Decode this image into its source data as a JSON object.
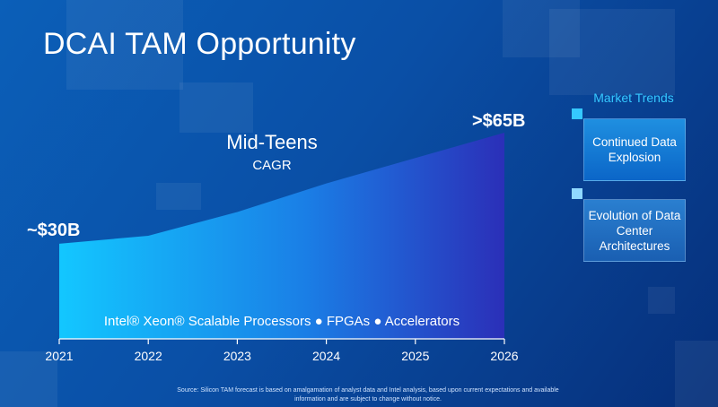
{
  "title": "DCAI TAM Opportunity",
  "cagr": {
    "line1": "Mid-Teens",
    "line2": "CAGR"
  },
  "start_label": "~$30B",
  "end_label": ">$65B",
  "products_line": "Intel® Xeon® Scalable Processors ● FPGAs ● Accelerators",
  "market_trends": {
    "title": "Market Trends",
    "items": [
      "Continued Data Explosion",
      "Evolution of Data Center Architectures"
    ]
  },
  "source": "Source: Silicon TAM forecast is based on amalgamation of analyst data and Intel analysis, based upon current expectations and available information and are subject to change without notice.",
  "colors": {
    "area_left": "#13c7ff",
    "area_right": "#2b2fb8",
    "accent": "#35c8ff"
  },
  "chart_data": {
    "type": "area",
    "title": "DCAI TAM Opportunity",
    "x": [
      2021,
      2022,
      2023,
      2024,
      2025,
      2026
    ],
    "series": [
      {
        "values": [
          30,
          32.5,
          40,
          49,
          57,
          65
        ]
      }
    ],
    "data_labels": {
      "2021": "~$30B",
      "2026": ">$65B"
    },
    "annotation": "Mid-Teens CAGR",
    "xlabel": "",
    "ylabel": "",
    "ylim": [
      0,
      65
    ],
    "grid": false
  }
}
